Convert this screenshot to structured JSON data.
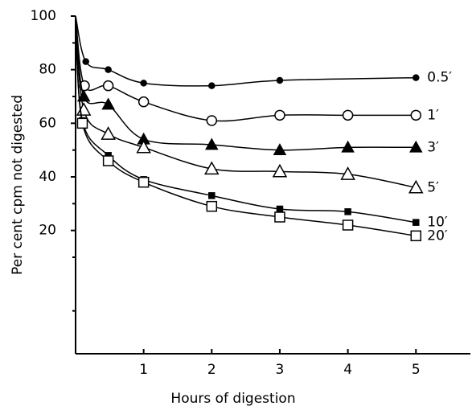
{
  "chart_data": {
    "type": "line",
    "xlabel": "Hours of digestion",
    "ylabel": "Per cent cpm not digested",
    "xlim": [
      0,
      5.8
    ],
    "ylim": [
      -26,
      100
    ],
    "xticks": [
      1,
      2,
      3,
      4,
      5
    ],
    "yticks": [
      20,
      40,
      60,
      80,
      100
    ],
    "yticks_minor": [
      -10,
      10,
      30,
      50,
      70,
      90
    ],
    "series": [
      {
        "name": "0.5′",
        "color": "#000000",
        "marker": "filled-circle",
        "x": [
          0,
          0.15,
          0.48,
          1,
          2,
          3,
          5
        ],
        "values": [
          100,
          83,
          80,
          75,
          74,
          76,
          77
        ]
      },
      {
        "name": "1′",
        "color": "#000000",
        "marker": "open-circle",
        "x": [
          0,
          0.13,
          0.48,
          1,
          2,
          3,
          4,
          5
        ],
        "values": [
          100,
          74,
          74,
          68,
          61,
          63,
          63,
          63
        ]
      },
      {
        "name": "3′",
        "color": "#000000",
        "marker": "filled-triangle",
        "x": [
          0,
          0.12,
          0.48,
          1,
          2,
          3,
          4,
          5
        ],
        "values": [
          100,
          70,
          67,
          54,
          52,
          50,
          51,
          51
        ]
      },
      {
        "name": "5′",
        "color": "#000000",
        "marker": "open-triangle",
        "x": [
          0,
          0.12,
          0.48,
          1,
          2,
          3,
          4,
          5
        ],
        "values": [
          100,
          65,
          56,
          51,
          43,
          42,
          41,
          36
        ]
      },
      {
        "name": "10′",
        "color": "#000000",
        "marker": "filled-square",
        "x": [
          0,
          0.1,
          0.48,
          1,
          2,
          3,
          4,
          5
        ],
        "values": [
          100,
          61,
          48,
          39,
          33,
          28,
          27,
          23
        ]
      },
      {
        "name": "20′",
        "color": "#000000",
        "marker": "open-square",
        "x": [
          0,
          0.1,
          0.48,
          1,
          2,
          3,
          4,
          5
        ],
        "values": [
          100,
          60,
          46,
          38,
          29,
          25,
          22,
          18
        ]
      }
    ]
  }
}
